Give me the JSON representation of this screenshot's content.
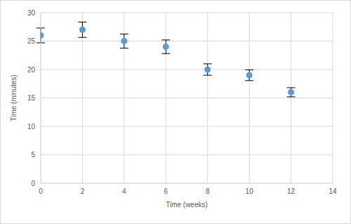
{
  "chart_data": {
    "type": "scatter",
    "x_label": "Time (weeks)",
    "y_label": "Time (minutes)",
    "x": [
      0,
      2,
      4,
      6,
      8,
      10,
      12
    ],
    "values": [
      26,
      27,
      25,
      24,
      20,
      19,
      16
    ],
    "errors": [
      1.3,
      1.35,
      1.25,
      1.2,
      1.0,
      0.95,
      0.8
    ],
    "color": "#5b9bd5",
    "marker": "circle",
    "xlim": [
      0,
      14
    ],
    "xticks": [
      0,
      2,
      4,
      6,
      8,
      10,
      12,
      14
    ],
    "ylim": [
      0,
      30
    ],
    "yticks": [
      0,
      5,
      10,
      15,
      20,
      25,
      30
    ],
    "grid": true
  }
}
